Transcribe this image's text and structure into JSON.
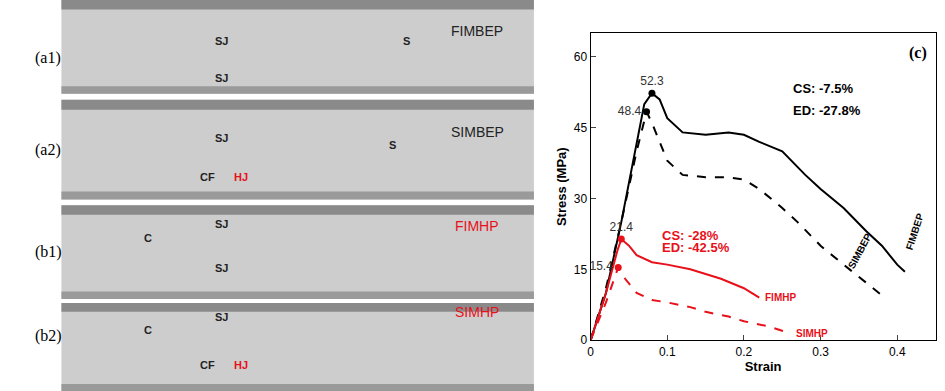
{
  "panels": [
    {
      "label": "(a1)",
      "name": {
        "text": "FIMBEP",
        "color": "#222222"
      },
      "marks": [
        {
          "text": "SJ",
          "color": "#222222"
        },
        {
          "text": "SJ",
          "color": "#222222"
        },
        {
          "text": "S",
          "color": "#222222"
        }
      ]
    },
    {
      "label": "(a2)",
      "name": {
        "text": "SIMBEP",
        "color": "#222222"
      },
      "marks": [
        {
          "text": "SJ",
          "color": "#222222"
        },
        {
          "text": "CF",
          "color": "#222222"
        },
        {
          "text": "HJ",
          "color": "#e8101a"
        },
        {
          "text": "S",
          "color": "#222222"
        }
      ]
    },
    {
      "label": "(b1)",
      "name": {
        "text": "FIMHP",
        "color": "#e8101a"
      },
      "marks": [
        {
          "text": "C",
          "color": "#222222"
        },
        {
          "text": "SJ",
          "color": "#222222"
        },
        {
          "text": "SJ",
          "color": "#222222"
        }
      ]
    },
    {
      "label": "(b2)",
      "name": {
        "text": "SIMHP",
        "color": "#e8101a"
      },
      "marks": [
        {
          "text": "C",
          "color": "#222222"
        },
        {
          "text": "SJ",
          "color": "#222222"
        },
        {
          "text": "CF",
          "color": "#222222"
        },
        {
          "text": "HJ",
          "color": "#e8101a"
        }
      ]
    }
  ],
  "chart_data": {
    "type": "line",
    "title": "(c)",
    "x_label": "Strain",
    "y_label": "Stress (MPa)",
    "xlim": [
      0,
      0.45
    ],
    "xticks": [
      0,
      0.1,
      0.2,
      0.3,
      0.4
    ],
    "ylim": [
      0,
      65
    ],
    "yticks": [
      0,
      15,
      30,
      45,
      60
    ],
    "grid": false,
    "series": [
      {
        "name": "FIMBEP",
        "color": "#000000",
        "line_style": "solid",
        "x": [
          0,
          0.02,
          0.04,
          0.06,
          0.07,
          0.08,
          0.09,
          0.1,
          0.12,
          0.15,
          0.18,
          0.2,
          0.22,
          0.25,
          0.28,
          0.3,
          0.33,
          0.36,
          0.38,
          0.4,
          0.41
        ],
        "values": [
          0,
          10,
          25,
          42,
          50,
          52.3,
          51,
          47,
          44,
          43.5,
          44,
          43.5,
          42,
          40,
          35,
          32,
          28,
          23,
          20,
          16,
          14.5
        ],
        "peak": {
          "x": 0.08,
          "y": 52.3
        }
      },
      {
        "name": "SIMBEP",
        "color": "#000000",
        "line_style": "dash",
        "x": [
          0,
          0.02,
          0.04,
          0.06,
          0.073,
          0.08,
          0.09,
          0.1,
          0.12,
          0.15,
          0.18,
          0.2,
          0.22,
          0.25,
          0.27,
          0.3,
          0.33,
          0.36,
          0.38
        ],
        "values": [
          0,
          11,
          25,
          40,
          48.4,
          46,
          42,
          38,
          35,
          34.5,
          34.5,
          34,
          32,
          28,
          25,
          20,
          16,
          12,
          9.5
        ],
        "peak": {
          "x": 0.073,
          "y": 48.4
        }
      },
      {
        "name": "FIMHP",
        "color": "#e8101a",
        "line_style": "solid",
        "x": [
          0,
          0.02,
          0.035,
          0.04,
          0.05,
          0.06,
          0.08,
          0.1,
          0.13,
          0.15,
          0.17,
          0.2,
          0.22
        ],
        "values": [
          0,
          10,
          19,
          21.4,
          20,
          18,
          16.5,
          16,
          15,
          14,
          13,
          11,
          9
        ],
        "peak": {
          "x": 0.04,
          "y": 21.4
        }
      },
      {
        "name": "SIMHP",
        "color": "#e8101a",
        "line_style": "dash",
        "x": [
          0,
          0.02,
          0.036,
          0.045,
          0.06,
          0.08,
          0.1,
          0.13,
          0.15,
          0.18,
          0.2,
          0.23,
          0.26
        ],
        "values": [
          0,
          8,
          15.4,
          13,
          10,
          8.5,
          8,
          7,
          6,
          5,
          4,
          3,
          1.5
        ],
        "peak": {
          "x": 0.036,
          "y": 15.4
        }
      }
    ],
    "annotations": [
      {
        "text": "CS: -7.5%",
        "color": "#000000"
      },
      {
        "text": "ED: -27.8%",
        "color": "#000000"
      },
      {
        "text": "CS: -28%",
        "color": "#e8101a"
      },
      {
        "text": "ED: -42.5%",
        "color": "#e8101a"
      }
    ]
  }
}
